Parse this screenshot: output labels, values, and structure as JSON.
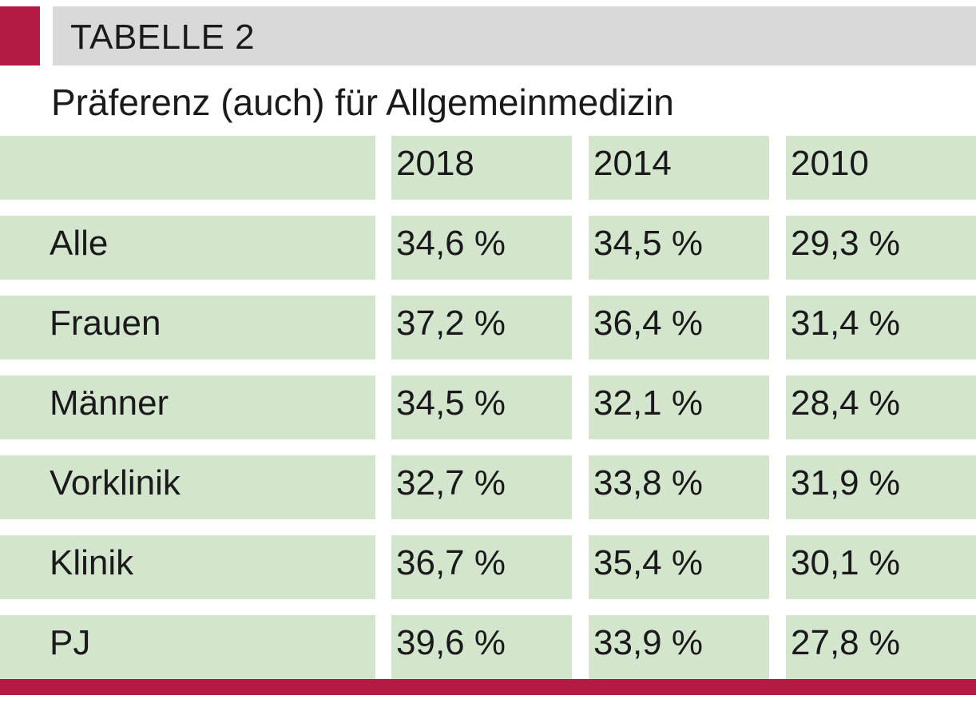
{
  "header": {
    "label": "TABELLE 2"
  },
  "chart_data": {
    "type": "table",
    "title": "Präferenz (auch) für Allgemeinmedizin",
    "columns": [
      "2018",
      "2014",
      "2010"
    ],
    "rows": [
      {
        "label": "Alle",
        "values": [
          "34,6 %",
          "34,5 %",
          "29,3 %"
        ]
      },
      {
        "label": "Frauen",
        "values": [
          "37,2 %",
          "36,4 %",
          "31,4 %"
        ]
      },
      {
        "label": "Männer",
        "values": [
          "34,5 %",
          "32,1 %",
          "28,4 %"
        ]
      },
      {
        "label": "Vorklinik",
        "values": [
          "32,7 %",
          "33,8 %",
          "31,9 %"
        ]
      },
      {
        "label": "Klinik",
        "values": [
          "36,7 %",
          "35,4 %",
          "30,1 %"
        ]
      },
      {
        "label": "PJ",
        "values": [
          "39,6 %",
          "33,9 %",
          "27,8 %"
        ]
      }
    ]
  },
  "colors": {
    "accent": "#b31a44",
    "header_bg": "#d9d9d9",
    "cell_bg": "#d3e5cc"
  }
}
